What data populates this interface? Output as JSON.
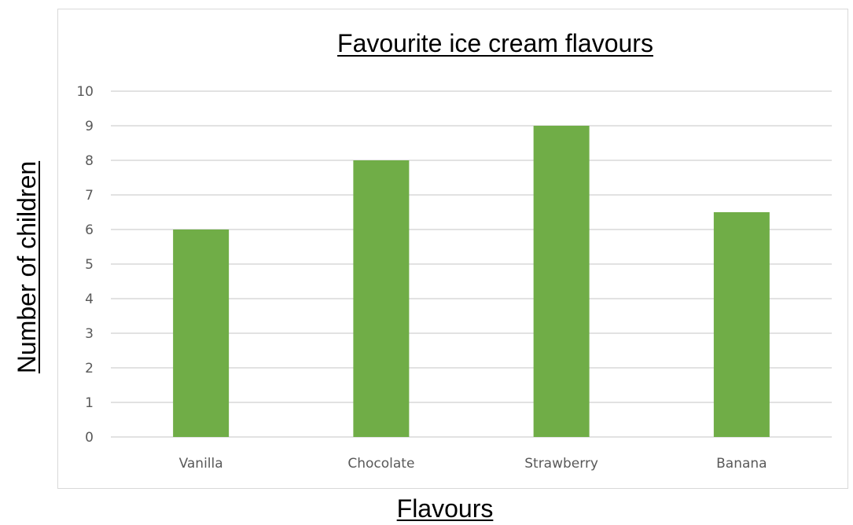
{
  "chart_data": {
    "type": "bar",
    "title": "Favourite ice cream flavours",
    "xlabel": "Flavours",
    "ylabel": "Number of children",
    "categories": [
      "Vanilla",
      "Chocolate",
      "Strawberry",
      "Banana"
    ],
    "values": [
      6,
      8,
      9,
      6.5
    ],
    "ylim": [
      0,
      10
    ],
    "yticks": [
      "0",
      "1",
      "2",
      "3",
      "4",
      "5",
      "6",
      "7",
      "8",
      "9",
      "10"
    ],
    "grid": true,
    "legend": "none",
    "bar_color": "#70ad47",
    "grid_color": "#d9d9d9"
  }
}
